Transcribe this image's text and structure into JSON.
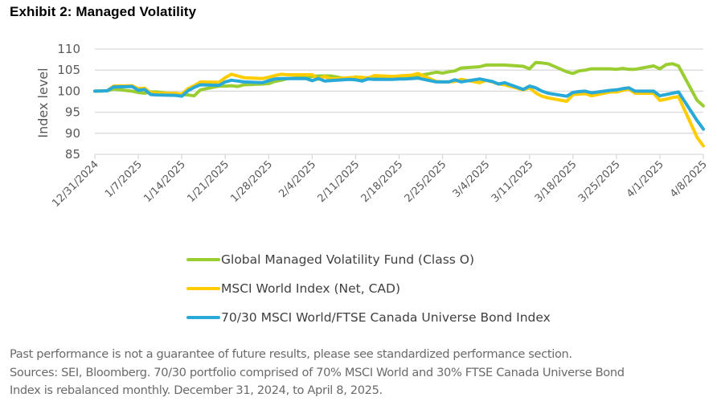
{
  "title": "Exhibit 2: Managed Volatility",
  "chart_data": {
    "type": "line",
    "title": "Exhibit 2: Managed Volatility",
    "xlabel": "",
    "ylabel": "Index level",
    "ylim": [
      85,
      110
    ],
    "yticks": [
      85,
      90,
      95,
      100,
      105,
      110
    ],
    "grid": true,
    "legend_position": "bottom",
    "x_tick_labels": [
      "12/31/2024",
      "1/7/2025",
      "1/14/2025",
      "1/21/2025",
      "1/28/2025",
      "2/4/2025",
      "2/11/2025",
      "2/18/2025",
      "2/25/2025",
      "3/4/2025",
      "3/11/2025",
      "3/18/2025",
      "3/25/2025",
      "4/1/2025",
      "4/8/2025"
    ],
    "x_days_range": [
      0,
      98
    ],
    "x_days": [
      0,
      2,
      3,
      6,
      7,
      8,
      9,
      10,
      13,
      14,
      15,
      16,
      17,
      20,
      21,
      22,
      23,
      24,
      27,
      28,
      29,
      30,
      31,
      34,
      35,
      36,
      37,
      38,
      41,
      42,
      43,
      44,
      45,
      48,
      49,
      50,
      51,
      52,
      55,
      56,
      57,
      58,
      59,
      62,
      63,
      64,
      65,
      66,
      69,
      70,
      71,
      72,
      73,
      76,
      77,
      78,
      79,
      80,
      83,
      84,
      85,
      86,
      87,
      90,
      91,
      92,
      93,
      94,
      97,
      98
    ],
    "series": [
      {
        "name": "Global Managed Volatility Fund (Class O)",
        "color": "#9acd32",
        "values": [
          100,
          100.1,
          100.5,
          100,
          99.7,
          99.5,
          99.8,
          99.8,
          99.3,
          99.2,
          99.1,
          98.9,
          100.3,
          101.2,
          101.2,
          101.3,
          101.1,
          101.5,
          101.7,
          101.8,
          102.3,
          102.6,
          103.0,
          103.3,
          103.5,
          103.6,
          103.6,
          103.6,
          102.8,
          103.4,
          103.0,
          103.2,
          103.3,
          103.2,
          103.6,
          103.4,
          103.5,
          103.6,
          104.5,
          104.3,
          104.6,
          104.8,
          105.5,
          105.8,
          106.2,
          106.2,
          106.2,
          106.2,
          105.9,
          105.3,
          106.8,
          106.7,
          106.5,
          104.6,
          104.2,
          104.8,
          105.0,
          105.3,
          105.3,
          105.2,
          105.4,
          105.2,
          105.2,
          106.0,
          105.3,
          106.3,
          106.5,
          106.0,
          97.8,
          96.5
        ]
      },
      {
        "name": "MSCI World Index (Net, CAD)",
        "color": "#ffcc00",
        "values": [
          100,
          100.1,
          101.2,
          101.3,
          100.6,
          100.7,
          99.6,
          99.5,
          99.5,
          99.3,
          100.6,
          101.3,
          102.2,
          102.1,
          103.2,
          104.0,
          103.6,
          103.2,
          103.0,
          103.3,
          103.7,
          104.0,
          103.9,
          103.9,
          103.9,
          102.8,
          103.5,
          102.9,
          103.2,
          103.3,
          103.3,
          103.1,
          103.7,
          103.5,
          103.6,
          103.7,
          103.8,
          104.2,
          102.3,
          102.2,
          102.2,
          102.3,
          102.8,
          102.0,
          102.6,
          102.2,
          101.7,
          101.5,
          100.3,
          100.8,
          99.6,
          98.8,
          98.4,
          97.6,
          99.2,
          99.3,
          99.4,
          98.9,
          99.8,
          99.8,
          100.2,
          100.5,
          99.5,
          99.5,
          97.8,
          98.1,
          98.5,
          98.7,
          89.0,
          87.0
        ]
      },
      {
        "name": "70/30 MSCI World/FTSE Canada Universe Bond Index",
        "color": "#29a9d8",
        "values": [
          100,
          100.1,
          101.0,
          101.1,
          100.2,
          100.4,
          99.2,
          99.1,
          99.0,
          98.8,
          100.1,
          100.9,
          101.5,
          101.4,
          102.2,
          102.6,
          102.4,
          102.2,
          102.0,
          102.5,
          102.9,
          103.0,
          103.0,
          103.0,
          102.5,
          103.0,
          102.4,
          102.5,
          102.8,
          102.7,
          102.4,
          102.9,
          102.8,
          102.8,
          102.9,
          102.9,
          103.0,
          103.1,
          102.2,
          102.2,
          102.2,
          102.7,
          102.2,
          102.9,
          102.6,
          102.3,
          101.7,
          102.0,
          100.4,
          101.2,
          100.8,
          100.0,
          99.5,
          98.8,
          99.7,
          99.9,
          100.0,
          99.6,
          100.2,
          100.3,
          100.6,
          100.8,
          100.0,
          100.0,
          98.9,
          99.2,
          99.5,
          99.8,
          93.0,
          91.0
        ]
      }
    ]
  },
  "legend": [
    {
      "label": "Global Managed Volatility Fund (Class O)",
      "color": "#9acd32"
    },
    {
      "label": "MSCI World Index (Net, CAD)",
      "color": "#ffcc00"
    },
    {
      "label": "70/30 MSCI World/FTSE Canada Universe Bond Index",
      "color": "#29a9d8"
    }
  ],
  "footnote": {
    "line1": "Past performance is not a guarantee of future results, please see standardized performance section.",
    "line2": "Sources: SEI, Bloomberg. 70/30 portfolio comprised of 70% MSCI World and 30% FTSE Canada Universe Bond",
    "line3": "Index is rebalanced monthly. December 31, 2024, to April 8, 2025."
  }
}
